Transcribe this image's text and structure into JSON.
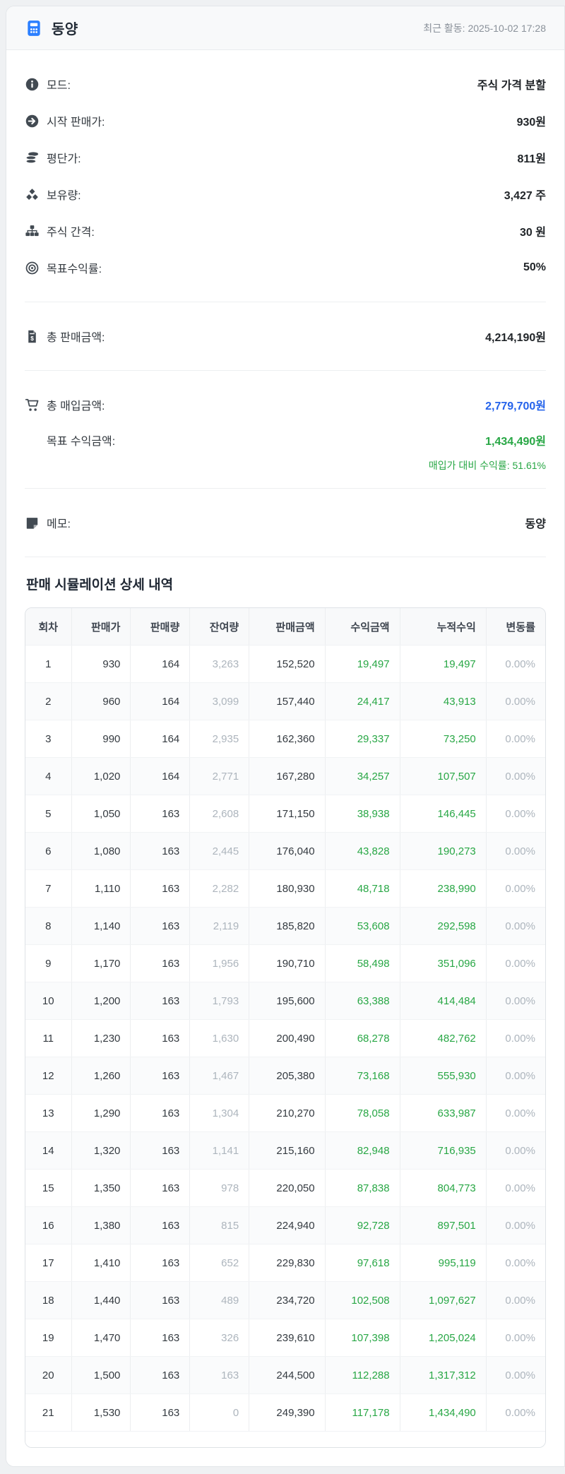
{
  "header": {
    "icon": "calculator-icon",
    "title": "동양",
    "last_activity": "최근 활동: 2025-10-02 17:28"
  },
  "info": {
    "rows": [
      {
        "icon": "info-circle-icon",
        "label": "모드:",
        "value": "주식 가격 분할"
      },
      {
        "icon": "arrow-circle-right-icon",
        "label": "시작 판매가:",
        "value": "930원"
      },
      {
        "icon": "coins-icon",
        "label": "평단가:",
        "value": "811원"
      },
      {
        "icon": "cubes-icon",
        "label": "보유량:",
        "value": "3,427 주"
      },
      {
        "icon": "sitemap-icon",
        "label": "주식 간격:",
        "value": "30 원"
      },
      {
        "icon": "bullseye-icon",
        "label": "목표수익률:",
        "value": "50%"
      }
    ]
  },
  "totals": {
    "total_sale": {
      "icon": "invoice-dollar-icon",
      "label": "총 판매금액:",
      "value": "4,214,190원"
    },
    "total_purchase": {
      "icon": "cart-icon",
      "label": "총 매입금액:",
      "value": "2,779,700원"
    },
    "target_profit": {
      "label": "목표 수익금액:",
      "value": "1,434,490원"
    },
    "profit_rate_note": "매입가 대비 수익률: 51.61%"
  },
  "memo": {
    "icon": "sticky-note-icon",
    "label": "메모:",
    "value": "동양"
  },
  "simulation": {
    "title": "판매 시뮬레이션 상세 내역",
    "columns": [
      "회차",
      "판매가",
      "판매량",
      "잔여량",
      "판매금액",
      "수익금액",
      "누적수익",
      "변동률"
    ],
    "column_keys": [
      "round",
      "sale-price",
      "sale-qty",
      "remaining-qty",
      "sale-amount",
      "profit-amount",
      "cumulative-profit",
      "change-rate"
    ],
    "rows": [
      [
        "1",
        "930",
        "164",
        "3,263",
        "152,520",
        "19,497",
        "19,497",
        "0.00%"
      ],
      [
        "2",
        "960",
        "164",
        "3,099",
        "157,440",
        "24,417",
        "43,913",
        "0.00%"
      ],
      [
        "3",
        "990",
        "164",
        "2,935",
        "162,360",
        "29,337",
        "73,250",
        "0.00%"
      ],
      [
        "4",
        "1,020",
        "164",
        "2,771",
        "167,280",
        "34,257",
        "107,507",
        "0.00%"
      ],
      [
        "5",
        "1,050",
        "163",
        "2,608",
        "171,150",
        "38,938",
        "146,445",
        "0.00%"
      ],
      [
        "6",
        "1,080",
        "163",
        "2,445",
        "176,040",
        "43,828",
        "190,273",
        "0.00%"
      ],
      [
        "7",
        "1,110",
        "163",
        "2,282",
        "180,930",
        "48,718",
        "238,990",
        "0.00%"
      ],
      [
        "8",
        "1,140",
        "163",
        "2,119",
        "185,820",
        "53,608",
        "292,598",
        "0.00%"
      ],
      [
        "9",
        "1,170",
        "163",
        "1,956",
        "190,710",
        "58,498",
        "351,096",
        "0.00%"
      ],
      [
        "10",
        "1,200",
        "163",
        "1,793",
        "195,600",
        "63,388",
        "414,484",
        "0.00%"
      ],
      [
        "11",
        "1,230",
        "163",
        "1,630",
        "200,490",
        "68,278",
        "482,762",
        "0.00%"
      ],
      [
        "12",
        "1,260",
        "163",
        "1,467",
        "205,380",
        "73,168",
        "555,930",
        "0.00%"
      ],
      [
        "13",
        "1,290",
        "163",
        "1,304",
        "210,270",
        "78,058",
        "633,987",
        "0.00%"
      ],
      [
        "14",
        "1,320",
        "163",
        "1,141",
        "215,160",
        "82,948",
        "716,935",
        "0.00%"
      ],
      [
        "15",
        "1,350",
        "163",
        "978",
        "220,050",
        "87,838",
        "804,773",
        "0.00%"
      ],
      [
        "16",
        "1,380",
        "163",
        "815",
        "224,940",
        "92,728",
        "897,501",
        "0.00%"
      ],
      [
        "17",
        "1,410",
        "163",
        "652",
        "229,830",
        "97,618",
        "995,119",
        "0.00%"
      ],
      [
        "18",
        "1,440",
        "163",
        "489",
        "234,720",
        "102,508",
        "1,097,627",
        "0.00%"
      ],
      [
        "19",
        "1,470",
        "163",
        "326",
        "239,610",
        "107,398",
        "1,205,024",
        "0.00%"
      ],
      [
        "20",
        "1,500",
        "163",
        "163",
        "244,500",
        "112,288",
        "1,317,312",
        "0.00%"
      ],
      [
        "21",
        "1,530",
        "163",
        "0",
        "249,390",
        "117,178",
        "1,434,490",
        "0.00%"
      ]
    ]
  },
  "colors": {
    "accent_blue": "#2b7fff",
    "purchase_blue": "#2563eb",
    "profit_green": "#28a745",
    "muted_gray": "#adb5bd",
    "text_dark": "#212529",
    "icon_gray": "#424a52"
  }
}
